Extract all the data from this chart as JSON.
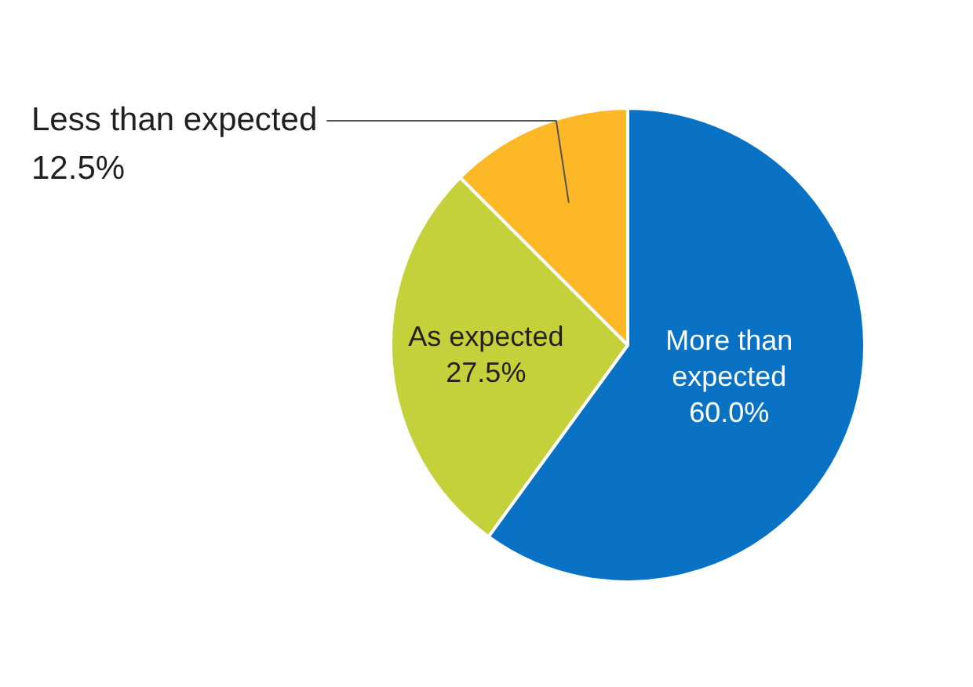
{
  "chart_data": {
    "type": "pie",
    "categories": [
      "More than expected",
      "As expected",
      "Less than expected"
    ],
    "values": [
      60.0,
      27.5,
      12.5
    ],
    "colors": [
      "#0a72c4",
      "#c4d13a",
      "#fdb827"
    ],
    "value_labels": [
      "60.0%",
      "27.5%",
      "12.5%"
    ],
    "legend": false
  }
}
